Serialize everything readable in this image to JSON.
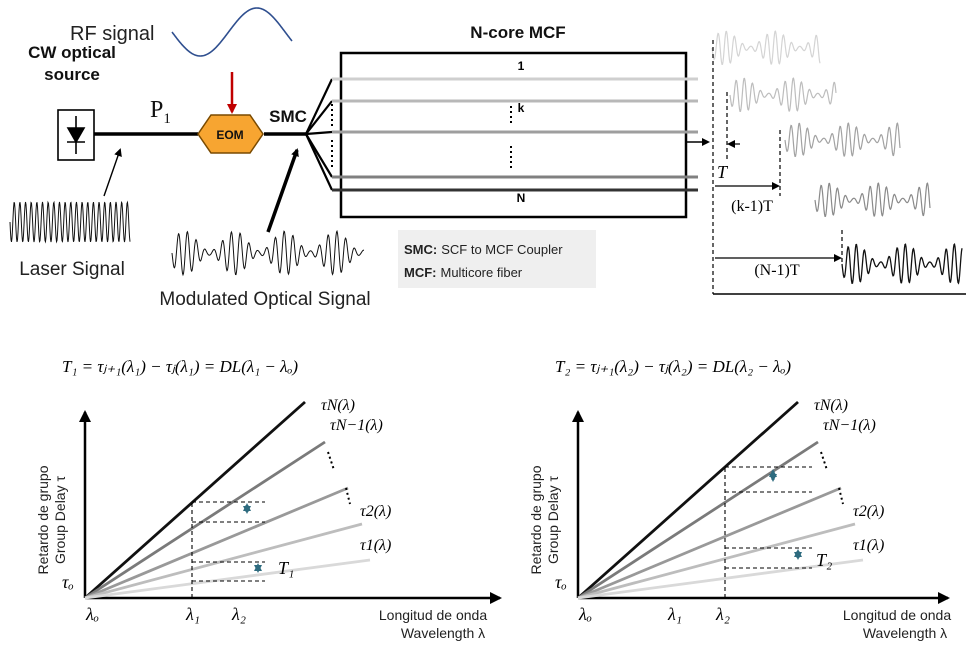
{
  "top": {
    "rf_label": "RF signal",
    "cw_source_line1": "CW optical",
    "cw_source_line2": "source",
    "p1_label": "P",
    "p1_sub": "1",
    "eom_label": "EOM",
    "smc_label": "SMC",
    "laser_signal_label": "Laser Signal",
    "modulated_label": "Modulated Optical Signal",
    "mcf_title": "N-core MCF",
    "core_labels": [
      "1",
      "k",
      "N"
    ],
    "legend": {
      "smc_key": "SMC:",
      "smc_text": "SCF to MCF Coupler",
      "mcf_key": "MCF:",
      "mcf_text": "Multicore fiber"
    },
    "delay_labels": {
      "T": "T",
      "kT": "(k-1)T",
      "NT": "(N-1)T"
    }
  },
  "graphs": [
    {
      "equation": "T₁ = τⱼ₊₁(λ₁) − τⱼ(λ₁) = DL(λ₁ − λₒ)",
      "y_label_es": "Retardo de grupo",
      "y_label_en": "Group Delay τ",
      "x_label_es": "Longitud de onda",
      "x_label_en": "Wavelength λ",
      "origin_tau": "τₒ",
      "origin_lambda": "λₒ",
      "x_ticks": [
        "λ₁",
        "λ₂"
      ],
      "curve_labels": [
        "τN(λ)",
        "τN−1(λ)",
        "τ2(λ)",
        "τ1(λ)"
      ],
      "delay_label": "T₁"
    },
    {
      "equation": "T₂ = τⱼ₊₁(λ₂) − τⱼ(λ₂) = DL(λ₂ − λₒ)",
      "y_label_es": "Retardo de grupo",
      "y_label_en": "Group Delay τ",
      "x_label_es": "Longitud de onda",
      "x_label_en": "Wavelength λ",
      "origin_tau": "τₒ",
      "origin_lambda": "λₒ",
      "x_ticks": [
        "λ₁",
        "λ₂"
      ],
      "curve_labels": [
        "τN(λ)",
        "τN−1(λ)",
        "τ2(λ)",
        "τ1(λ)"
      ],
      "delay_label": "T₂"
    }
  ]
}
